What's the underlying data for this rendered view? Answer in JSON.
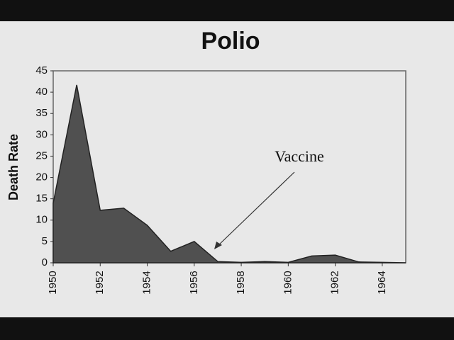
{
  "chart_data": {
    "type": "area",
    "title": "Polio",
    "ylabel": "Death Rate",
    "annotation": "Vaccine",
    "x": [
      1950,
      1951,
      1952,
      1953,
      1954,
      1955,
      1956,
      1957,
      1958,
      1959,
      1960,
      1961,
      1962,
      1963,
      1964,
      1965
    ],
    "values": [
      14,
      41.7,
      12.3,
      12.8,
      8.8,
      2.7,
      5,
      0.3,
      0.1,
      0.3,
      0.1,
      1.6,
      1.8,
      0.2,
      0.1,
      0
    ],
    "color": "#505050",
    "xlim": [
      1950,
      1965
    ],
    "xticks": [
      1950,
      1952,
      1954,
      1956,
      1958,
      1960,
      1962,
      1964
    ],
    "ylim": [
      0,
      45
    ],
    "yticks": [
      0,
      5,
      10,
      15,
      20,
      25,
      30,
      35,
      40,
      45
    ],
    "grid": false
  }
}
